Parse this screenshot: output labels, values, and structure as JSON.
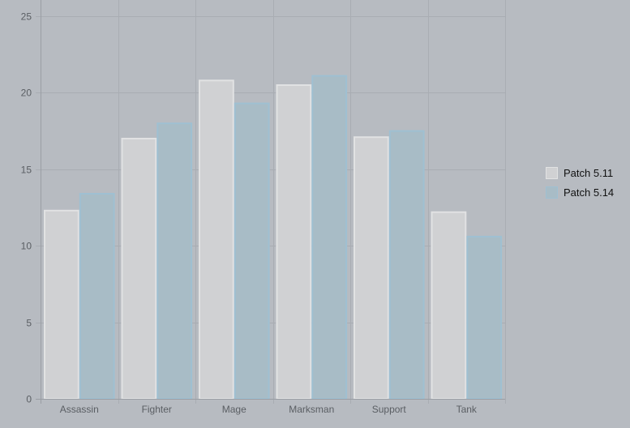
{
  "chart_data": {
    "type": "bar",
    "title": "",
    "xlabel": "",
    "ylabel": "",
    "categories": [
      "Assassin",
      "Fighter",
      "Mage",
      "Marksman",
      "Support",
      "Tank"
    ],
    "series": [
      {
        "name": "Patch 5.11",
        "values": [
          12.3,
          17.0,
          20.8,
          20.5,
          17.1,
          12.2
        ],
        "fill": "#d0d1d3",
        "stroke": "#e1e2e3"
      },
      {
        "name": "Patch 5.14",
        "values": [
          13.4,
          18.0,
          19.3,
          21.1,
          17.5,
          10.6
        ],
        "fill": "#a8bcc6",
        "stroke": "#9fc0d2"
      }
    ],
    "ylim": [
      0,
      25
    ],
    "yticks": [
      0,
      5,
      10,
      15,
      20,
      25
    ],
    "grid": true,
    "legend_position": "right"
  },
  "colors": {
    "background": "#b7bbc1",
    "grid": "#a9adb3",
    "axis": "#9a9ea4"
  }
}
